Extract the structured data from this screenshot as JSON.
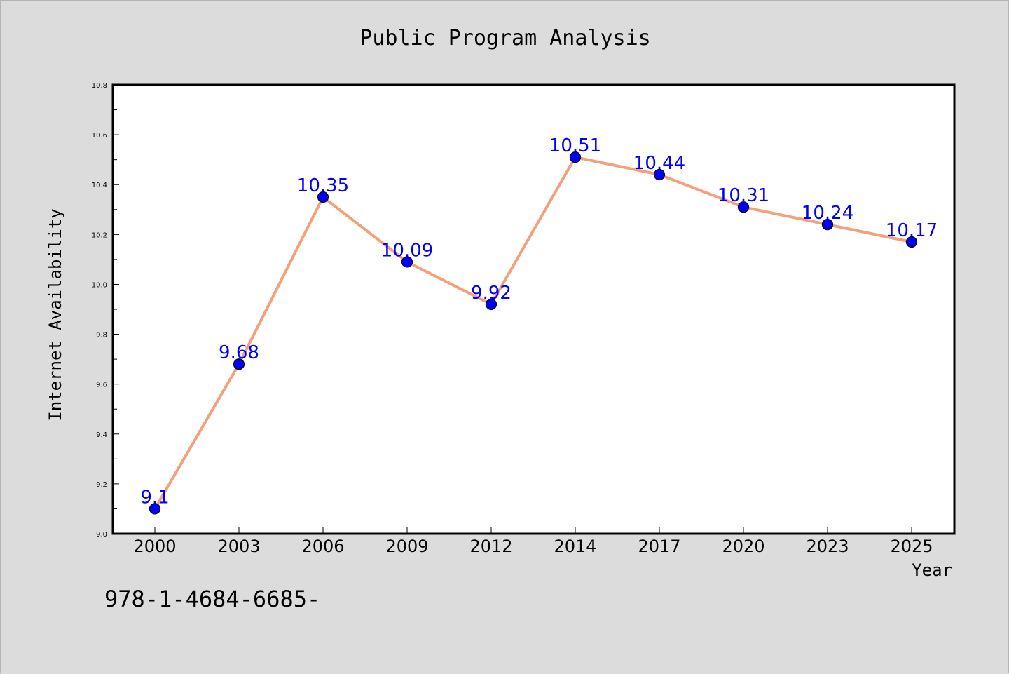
{
  "chart_data": {
    "type": "line",
    "title": "Public Program Analysis",
    "xlabel": "Year",
    "ylabel": "Internet Availability",
    "footnote": "978-1-4684-6685-",
    "categories": [
      "2000",
      "2003",
      "2006",
      "2009",
      "2012",
      "2014",
      "2017",
      "2020",
      "2023",
      "2025"
    ],
    "values": [
      9.1,
      9.68,
      10.35,
      10.09,
      9.92,
      10.51,
      10.44,
      10.31,
      10.24,
      10.17
    ],
    "value_labels": [
      "9.1",
      "9.68",
      "10.35",
      "10.09",
      "9.92",
      "10.51",
      "10.44",
      "10.31",
      "10.24",
      "10.17"
    ],
    "ylim": [
      9.0,
      10.8
    ],
    "yticks": [
      "9.0",
      "9.2",
      "9.4",
      "9.6",
      "9.8",
      "10.0",
      "10.2",
      "10.4",
      "10.6",
      "10.8"
    ],
    "grid": false,
    "colors": {
      "line": "#f4a07a",
      "marker": "#0000ff",
      "label": "#0000ff",
      "background": "#dcdcdc",
      "plot_background": "#ffffff"
    }
  }
}
